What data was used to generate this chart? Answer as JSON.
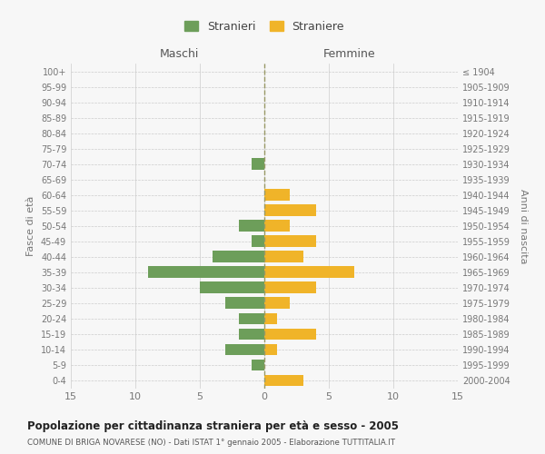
{
  "age_groups": [
    "100+",
    "95-99",
    "90-94",
    "85-89",
    "80-84",
    "75-79",
    "70-74",
    "65-69",
    "60-64",
    "55-59",
    "50-54",
    "45-49",
    "40-44",
    "35-39",
    "30-34",
    "25-29",
    "20-24",
    "15-19",
    "10-14",
    "5-9",
    "0-4"
  ],
  "birth_years": [
    "≤ 1904",
    "1905-1909",
    "1910-1914",
    "1915-1919",
    "1920-1924",
    "1925-1929",
    "1930-1934",
    "1935-1939",
    "1940-1944",
    "1945-1949",
    "1950-1954",
    "1955-1959",
    "1960-1964",
    "1965-1969",
    "1970-1974",
    "1975-1979",
    "1980-1984",
    "1985-1989",
    "1990-1994",
    "1995-1999",
    "2000-2004"
  ],
  "males": [
    0,
    0,
    0,
    0,
    0,
    0,
    1,
    0,
    0,
    0,
    2,
    1,
    4,
    9,
    5,
    3,
    2,
    2,
    3,
    1,
    0
  ],
  "females": [
    0,
    0,
    0,
    0,
    0,
    0,
    0,
    0,
    2,
    4,
    2,
    4,
    3,
    7,
    4,
    2,
    1,
    4,
    1,
    0,
    3
  ],
  "male_color": "#6d9e5a",
  "female_color": "#f0b429",
  "background_color": "#f7f7f7",
  "grid_color": "#cccccc",
  "title": "Popolazione per cittadinanza straniera per età e sesso - 2005",
  "subtitle": "COMUNE DI BRIGA NOVARESE (NO) - Dati ISTAT 1° gennaio 2005 - Elaborazione TUTTITALIA.IT",
  "ylabel_left": "Fasce di età",
  "ylabel_right": "Anni di nascita",
  "xlabel_left": "Maschi",
  "xlabel_right": "Femmine",
  "legend_male": "Stranieri",
  "legend_female": "Straniere",
  "xlim": 15,
  "bar_height": 0.75
}
